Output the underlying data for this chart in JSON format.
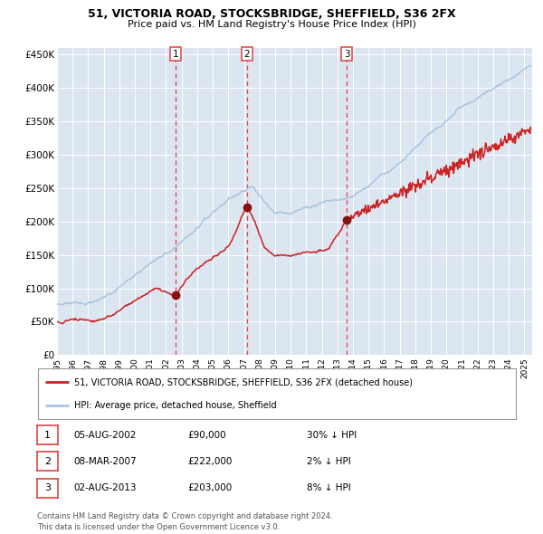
{
  "title1": "51, VICTORIA ROAD, STOCKSBRIDGE, SHEFFIELD, S36 2FX",
  "title2": "Price paid vs. HM Land Registry's House Price Index (HPI)",
  "background_color": "#ffffff",
  "plot_bg_color": "#dce6f1",
  "grid_color": "#ffffff",
  "hpi_color": "#a8c4e0",
  "price_color": "#cc2222",
  "sale_marker_color": "#881111",
  "vline_color": "#dd4444",
  "purchases": [
    {
      "label": "1",
      "date_num": 2002.59,
      "price": 90000
    },
    {
      "label": "2",
      "date_num": 2007.18,
      "price": 222000
    },
    {
      "label": "3",
      "date_num": 2013.59,
      "price": 203000
    }
  ],
  "legend_entries": [
    "51, VICTORIA ROAD, STOCKSBRIDGE, SHEFFIELD, S36 2FX (detached house)",
    "HPI: Average price, detached house, Sheffield"
  ],
  "table_rows": [
    [
      "1",
      "05-AUG-2002",
      "£90,000",
      "30% ↓ HPI"
    ],
    [
      "2",
      "08-MAR-2007",
      "£222,000",
      "2% ↓ HPI"
    ],
    [
      "3",
      "02-AUG-2013",
      "£203,000",
      "8% ↓ HPI"
    ]
  ],
  "footer": "Contains HM Land Registry data © Crown copyright and database right 2024.\nThis data is licensed under the Open Government Licence v3.0.",
  "ylim": [
    0,
    460000
  ],
  "xlim_start": 1995.0,
  "xlim_end": 2025.5,
  "ytick_vals": [
    0,
    50000,
    100000,
    150000,
    200000,
    250000,
    300000,
    350000,
    400000,
    450000
  ],
  "ytick_labels": [
    "£0",
    "£50K",
    "£100K",
    "£150K",
    "£200K",
    "£250K",
    "£300K",
    "£350K",
    "£400K",
    "£450K"
  ],
  "xticks": [
    1995,
    1996,
    1997,
    1998,
    1999,
    2000,
    2001,
    2002,
    2003,
    2004,
    2005,
    2006,
    2007,
    2008,
    2009,
    2010,
    2011,
    2012,
    2013,
    2014,
    2015,
    2016,
    2017,
    2018,
    2019,
    2020,
    2021,
    2022,
    2023,
    2024,
    2025
  ]
}
